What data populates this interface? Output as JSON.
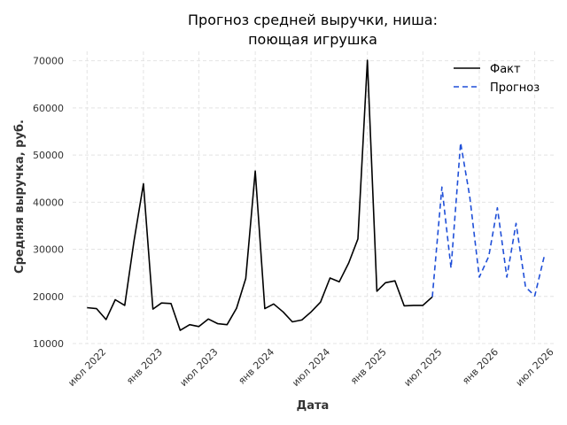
{
  "chart_data": {
    "type": "line",
    "title_lines": [
      "Прогноз средней выручки, ниша:",
      "поющая игрушка"
    ],
    "xlabel": "Дата",
    "ylabel": "Средняя выручка, руб.",
    "ylim": [
      10000,
      72000
    ],
    "xlim": [
      "2022-05-15",
      "2026-09-01"
    ],
    "yticks": [
      10000,
      20000,
      30000,
      40000,
      50000,
      60000,
      70000
    ],
    "yticklabels": [
      "10000",
      "20000",
      "30000",
      "40000",
      "50000",
      "60000",
      "70000"
    ],
    "xticks": [
      {
        "date": "2022-07-01",
        "label": "июл 2022"
      },
      {
        "date": "2023-01-01",
        "label": "янв 2023"
      },
      {
        "date": "2023-07-01",
        "label": "июл 2023"
      },
      {
        "date": "2024-01-01",
        "label": "янв 2024"
      },
      {
        "date": "2024-07-01",
        "label": "июл 2024"
      },
      {
        "date": "2025-01-01",
        "label": "янв 2025"
      },
      {
        "date": "2025-07-01",
        "label": "июл 2025"
      },
      {
        "date": "2026-01-01",
        "label": "янв 2026"
      },
      {
        "date": "2026-07-01",
        "label": "июл 2026"
      }
    ],
    "grid": true,
    "legend_position": "top-right",
    "series": [
      {
        "name": "Факт",
        "color": "#000000",
        "style": "solid",
        "x": [
          "2022-07-01",
          "2022-08-01",
          "2022-09-01",
          "2022-10-01",
          "2022-11-01",
          "2022-12-01",
          "2023-01-01",
          "2023-02-01",
          "2023-03-01",
          "2023-04-01",
          "2023-05-01",
          "2023-06-01",
          "2023-07-01",
          "2023-08-01",
          "2023-09-01",
          "2023-10-01",
          "2023-11-01",
          "2023-12-01",
          "2024-01-01",
          "2024-02-01",
          "2024-03-01",
          "2024-04-01",
          "2024-05-01",
          "2024-06-01",
          "2024-07-01",
          "2024-08-01",
          "2024-09-01",
          "2024-10-01",
          "2024-11-01",
          "2024-12-01",
          "2025-01-01",
          "2025-02-01",
          "2025-03-01",
          "2025-04-01",
          "2025-05-01",
          "2025-06-01",
          "2025-07-01",
          "2025-08-01"
        ],
        "y": [
          17600,
          17400,
          15100,
          19300,
          18100,
          31700,
          43900,
          17300,
          18600,
          18500,
          12800,
          14000,
          13600,
          15200,
          14200,
          14000,
          17500,
          23800,
          46600,
          17400,
          18400,
          16700,
          14600,
          15000,
          16700,
          18800,
          23900,
          23100,
          27100,
          32200,
          70100,
          21100,
          22900,
          23300,
          18000,
          18100,
          18100,
          19900
        ]
      },
      {
        "name": "Прогноз",
        "color": "#1f4fd8",
        "style": "dashed",
        "x": [
          "2025-08-01",
          "2025-09-01",
          "2025-10-01",
          "2025-11-01",
          "2025-12-01",
          "2026-01-01",
          "2026-02-01",
          "2026-03-01",
          "2026-04-01",
          "2026-05-01",
          "2026-06-01",
          "2026-07-01",
          "2026-08-01"
        ],
        "y": [
          19900,
          43200,
          26000,
          52600,
          41200,
          24100,
          28500,
          38800,
          24100,
          35500,
          22000,
          20100,
          28500
        ]
      }
    ]
  }
}
